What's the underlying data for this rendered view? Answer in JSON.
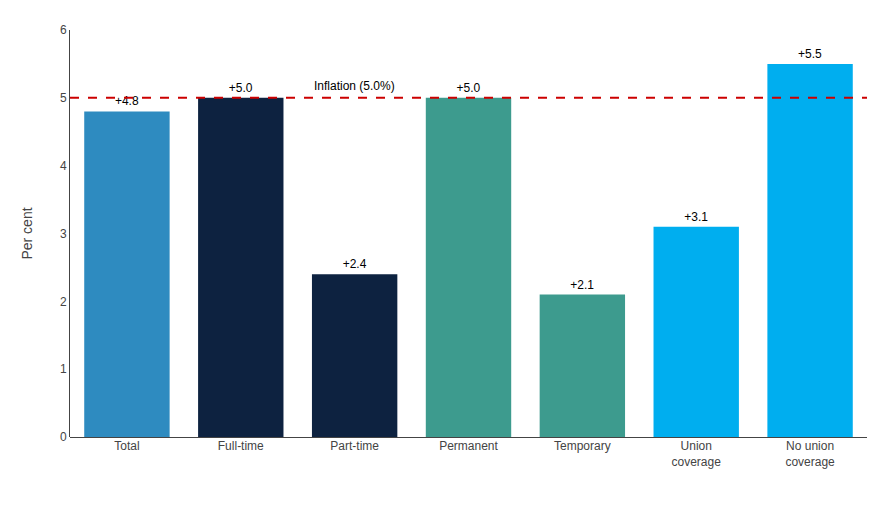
{
  "chart_data": {
    "type": "bar",
    "categories": [
      "Total",
      "Full-time",
      "Part-time",
      "Permanent",
      "Temporary",
      "Union\ncoverage",
      "No union\ncoverage"
    ],
    "values": [
      4.8,
      5.0,
      2.4,
      5.0,
      2.1,
      3.1,
      5.5
    ],
    "value_labels": [
      "+4.8",
      "+5.0",
      "+2.4",
      "+5.0",
      "+2.1",
      "+3.1",
      "+5.5"
    ],
    "data_labels": true,
    "colors": [
      "#2E8BC0",
      "#0D2240",
      "#0D2240",
      "#3D9B8E",
      "#3D9B8E",
      "#00AEEF",
      "#00AEEF"
    ],
    "ylabel": "Per cent",
    "ylim": [
      0,
      6
    ],
    "yticks": [
      0,
      1,
      2,
      3,
      4,
      5,
      6
    ],
    "grid": false,
    "annotations": [
      {
        "type": "hline",
        "y": 5.0,
        "text": "Inflation (5.0%)",
        "color": "#CC0000",
        "line_style": "dashed"
      }
    ]
  }
}
